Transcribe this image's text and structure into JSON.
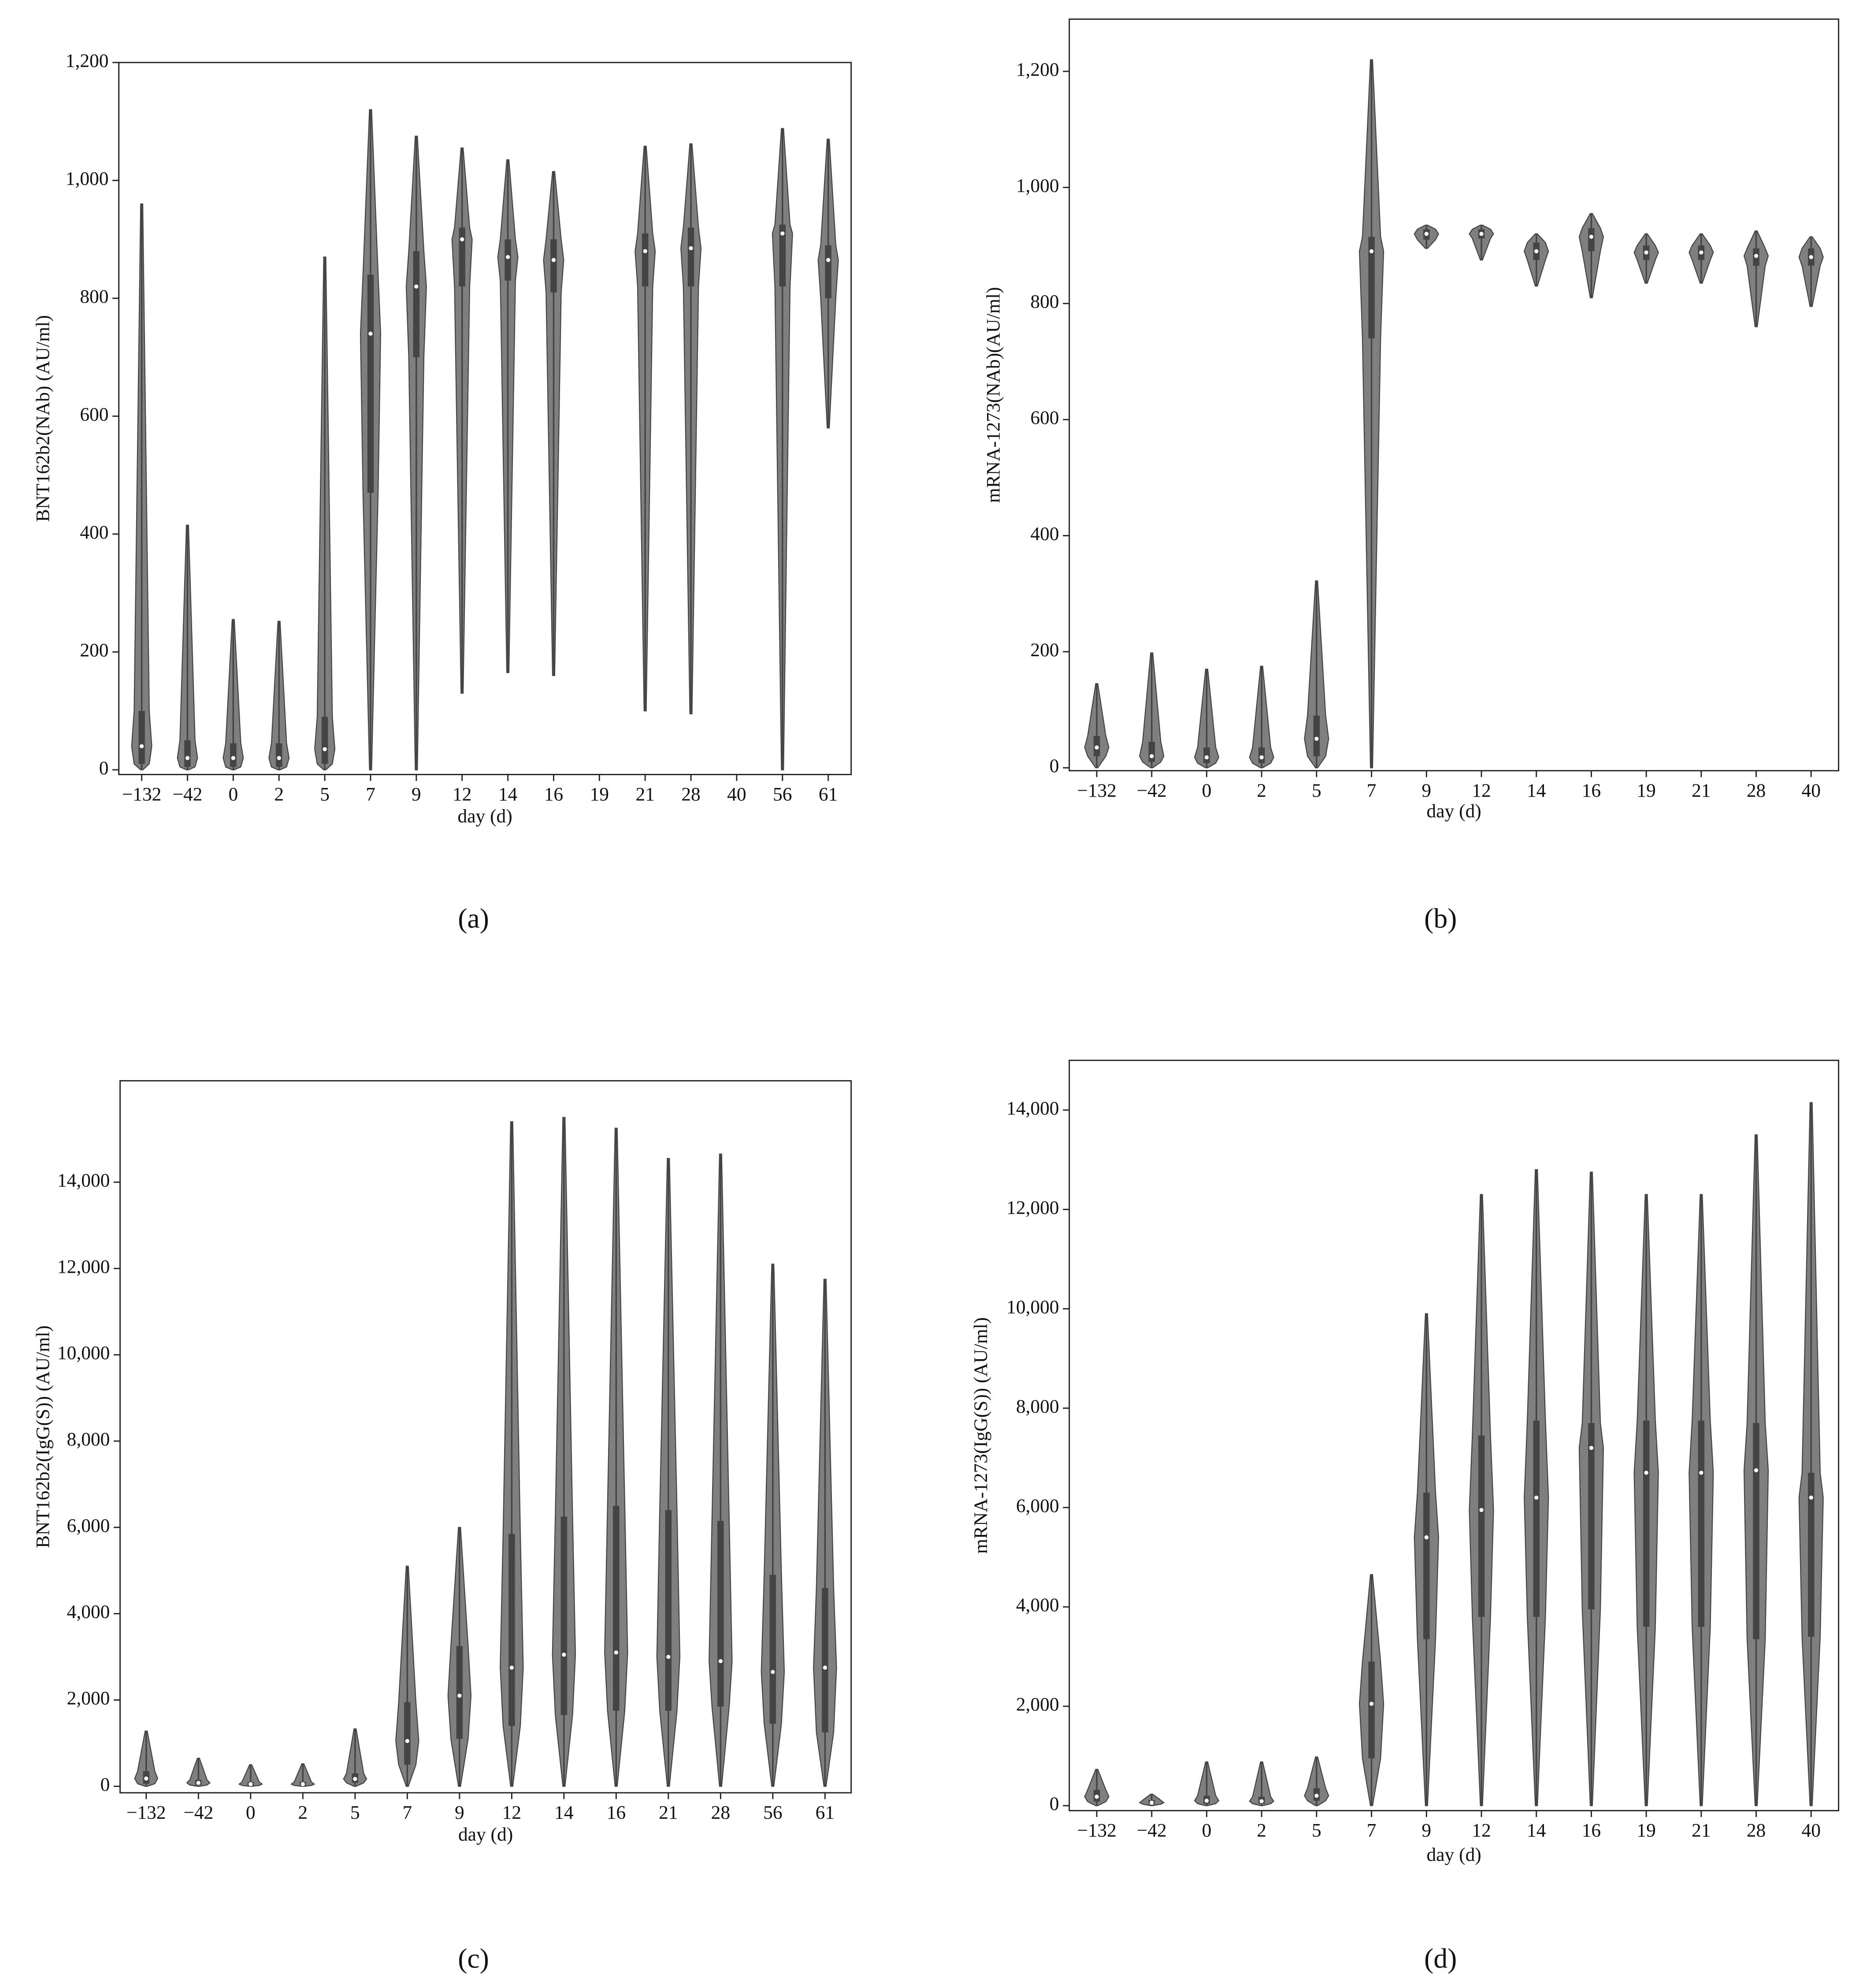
{
  "chart_data": [
    {
      "type": "violin",
      "caption": "(a)",
      "y_label": "BNT162b2(NAb) (AU/ml)",
      "x_label": "day (d)",
      "color": "#7f7f7f",
      "categories": [
        "−132",
        "−42",
        "0",
        "2",
        "5",
        "7",
        "9",
        "12",
        "14",
        "16",
        "19",
        "21",
        "28",
        "40",
        "56",
        "61"
      ],
      "min": [
        0,
        0,
        0,
        0,
        0,
        0,
        0,
        130,
        165,
        160,
        null,
        100,
        95,
        null,
        0,
        580
      ],
      "q1": [
        10,
        5,
        5,
        5,
        10,
        470,
        700,
        820,
        830,
        810,
        null,
        820,
        820,
        null,
        820,
        800
      ],
      "median": [
        40,
        20,
        20,
        20,
        35,
        740,
        820,
        900,
        870,
        865,
        null,
        880,
        885,
        null,
        910,
        865
      ],
      "q3": [
        100,
        50,
        45,
        45,
        90,
        840,
        880,
        920,
        900,
        900,
        null,
        910,
        920,
        null,
        925,
        890
      ],
      "max": [
        960,
        415,
        255,
        252,
        870,
        1120,
        1075,
        1055,
        1035,
        1015,
        null,
        1058,
        1062,
        null,
        1088,
        1070
      ],
      "ylim": [
        -8,
        1200
      ],
      "yticks": [
        0,
        200,
        400,
        600,
        800,
        {
          "value": 1000,
          "label": "1,000"
        },
        {
          "value": 1200,
          "label": "1,200"
        }
      ]
    },
    {
      "type": "violin",
      "caption": "(b)",
      "y_label": "mRNA-1273(NAb)(AU/ml)",
      "x_label": "day (d)",
      "color": "#7f7f7f",
      "categories": [
        "−132",
        "−42",
        "0",
        "2",
        "5",
        "7",
        "9",
        "12",
        "14",
        "16",
        "19",
        "21",
        "28",
        "40"
      ],
      "min": [
        0,
        0,
        0,
        0,
        0,
        0,
        895,
        875,
        830,
        810,
        835,
        835,
        760,
        795
      ],
      "q1": [
        20,
        10,
        8,
        8,
        20,
        740,
        910,
        912,
        875,
        890,
        875,
        875,
        865,
        865
      ],
      "median": [
        35,
        20,
        18,
        18,
        50,
        890,
        920,
        920,
        890,
        915,
        888,
        888,
        882,
        880
      ],
      "q3": [
        55,
        45,
        35,
        35,
        90,
        915,
        928,
        928,
        905,
        930,
        900,
        900,
        895,
        895
      ],
      "max": [
        145,
        198,
        170,
        175,
        322,
        1220,
        935,
        935,
        920,
        955,
        920,
        920,
        925,
        915
      ],
      "ylim": [
        -5,
        1290
      ],
      "yticks": [
        0,
        200,
        400,
        600,
        800,
        {
          "value": 1000,
          "label": "1,000"
        },
        {
          "value": 1200,
          "label": "1,200"
        }
      ]
    },
    {
      "type": "violin",
      "caption": "(c)",
      "y_label": "BNT162b2(IgG(S)) (AU/ml)",
      "x_label": "day (d)",
      "color": "#7f7f7f",
      "categories": [
        "−132",
        "−42",
        "0",
        "2",
        "5",
        "7",
        "9",
        "12",
        "14",
        "16",
        "21",
        "28",
        "56",
        "61"
      ],
      "min": [
        0,
        0,
        0,
        0,
        0,
        0,
        0,
        0,
        0,
        0,
        0,
        0,
        0,
        0
      ],
      "q1": [
        60,
        30,
        20,
        20,
        80,
        500,
        1100,
        1400,
        1650,
        1750,
        1750,
        1850,
        1450,
        1250
      ],
      "median": [
        180,
        80,
        50,
        50,
        170,
        1050,
        2100,
        2750,
        3050,
        3100,
        3000,
        2900,
        2650,
        2750
      ],
      "q3": [
        350,
        150,
        100,
        100,
        300,
        1950,
        3250,
        5850,
        6250,
        6500,
        6400,
        6150,
        4900,
        4600
      ],
      "max": [
        1280,
        650,
        500,
        520,
        1330,
        5100,
        6000,
        15400,
        15500,
        15250,
        14550,
        14650,
        12100,
        11750
      ],
      "ylim": [
        -150,
        16350
      ],
      "yticks": [
        0,
        {
          "value": 2000,
          "label": "2,000"
        },
        {
          "value": 4000,
          "label": "4,000"
        },
        {
          "value": 6000,
          "label": "6,000"
        },
        {
          "value": 8000,
          "label": "8,000"
        },
        {
          "value": 10000,
          "label": "10,000"
        },
        {
          "value": 12000,
          "label": "12,000"
        },
        {
          "value": 14000,
          "label": "14,000"
        }
      ]
    },
    {
      "type": "violin",
      "caption": "(d)",
      "y_label": "mRNA-1273(IgG(S)) (AU/ml)",
      "x_label": "day (d)",
      "color": "#7f7f7f",
      "categories": [
        "−132",
        "−42",
        "0",
        "2",
        "5",
        "7",
        "9",
        "12",
        "14",
        "16",
        "19",
        "21",
        "28",
        "40"
      ],
      "min": [
        0,
        0,
        0,
        0,
        0,
        0,
        0,
        0,
        0,
        0,
        0,
        0,
        0,
        0
      ],
      "q1": [
        80,
        30,
        40,
        40,
        100,
        950,
        3350,
        3800,
        3800,
        3950,
        3600,
        3600,
        3350,
        3400
      ],
      "median": [
        180,
        60,
        100,
        90,
        200,
        2050,
        5400,
        5950,
        6200,
        7200,
        6700,
        6700,
        6750,
        6200
      ],
      "q3": [
        320,
        110,
        200,
        180,
        350,
        2900,
        6300,
        7450,
        7750,
        7700,
        7750,
        7750,
        7700,
        6700
      ],
      "max": [
        730,
        230,
        880,
        880,
        980,
        4650,
        9900,
        12300,
        12800,
        12750,
        12300,
        12300,
        13500,
        14150
      ],
      "ylim": [
        -100,
        15000
      ],
      "yticks": [
        0,
        {
          "value": 2000,
          "label": "2,000"
        },
        {
          "value": 4000,
          "label": "4,000"
        },
        {
          "value": 6000,
          "label": "6,000"
        },
        {
          "value": 8000,
          "label": "8,000"
        },
        {
          "value": 10000,
          "label": "10,000"
        },
        {
          "value": 12000,
          "label": "12,000"
        },
        {
          "value": 14000,
          "label": "14,000"
        }
      ]
    }
  ]
}
